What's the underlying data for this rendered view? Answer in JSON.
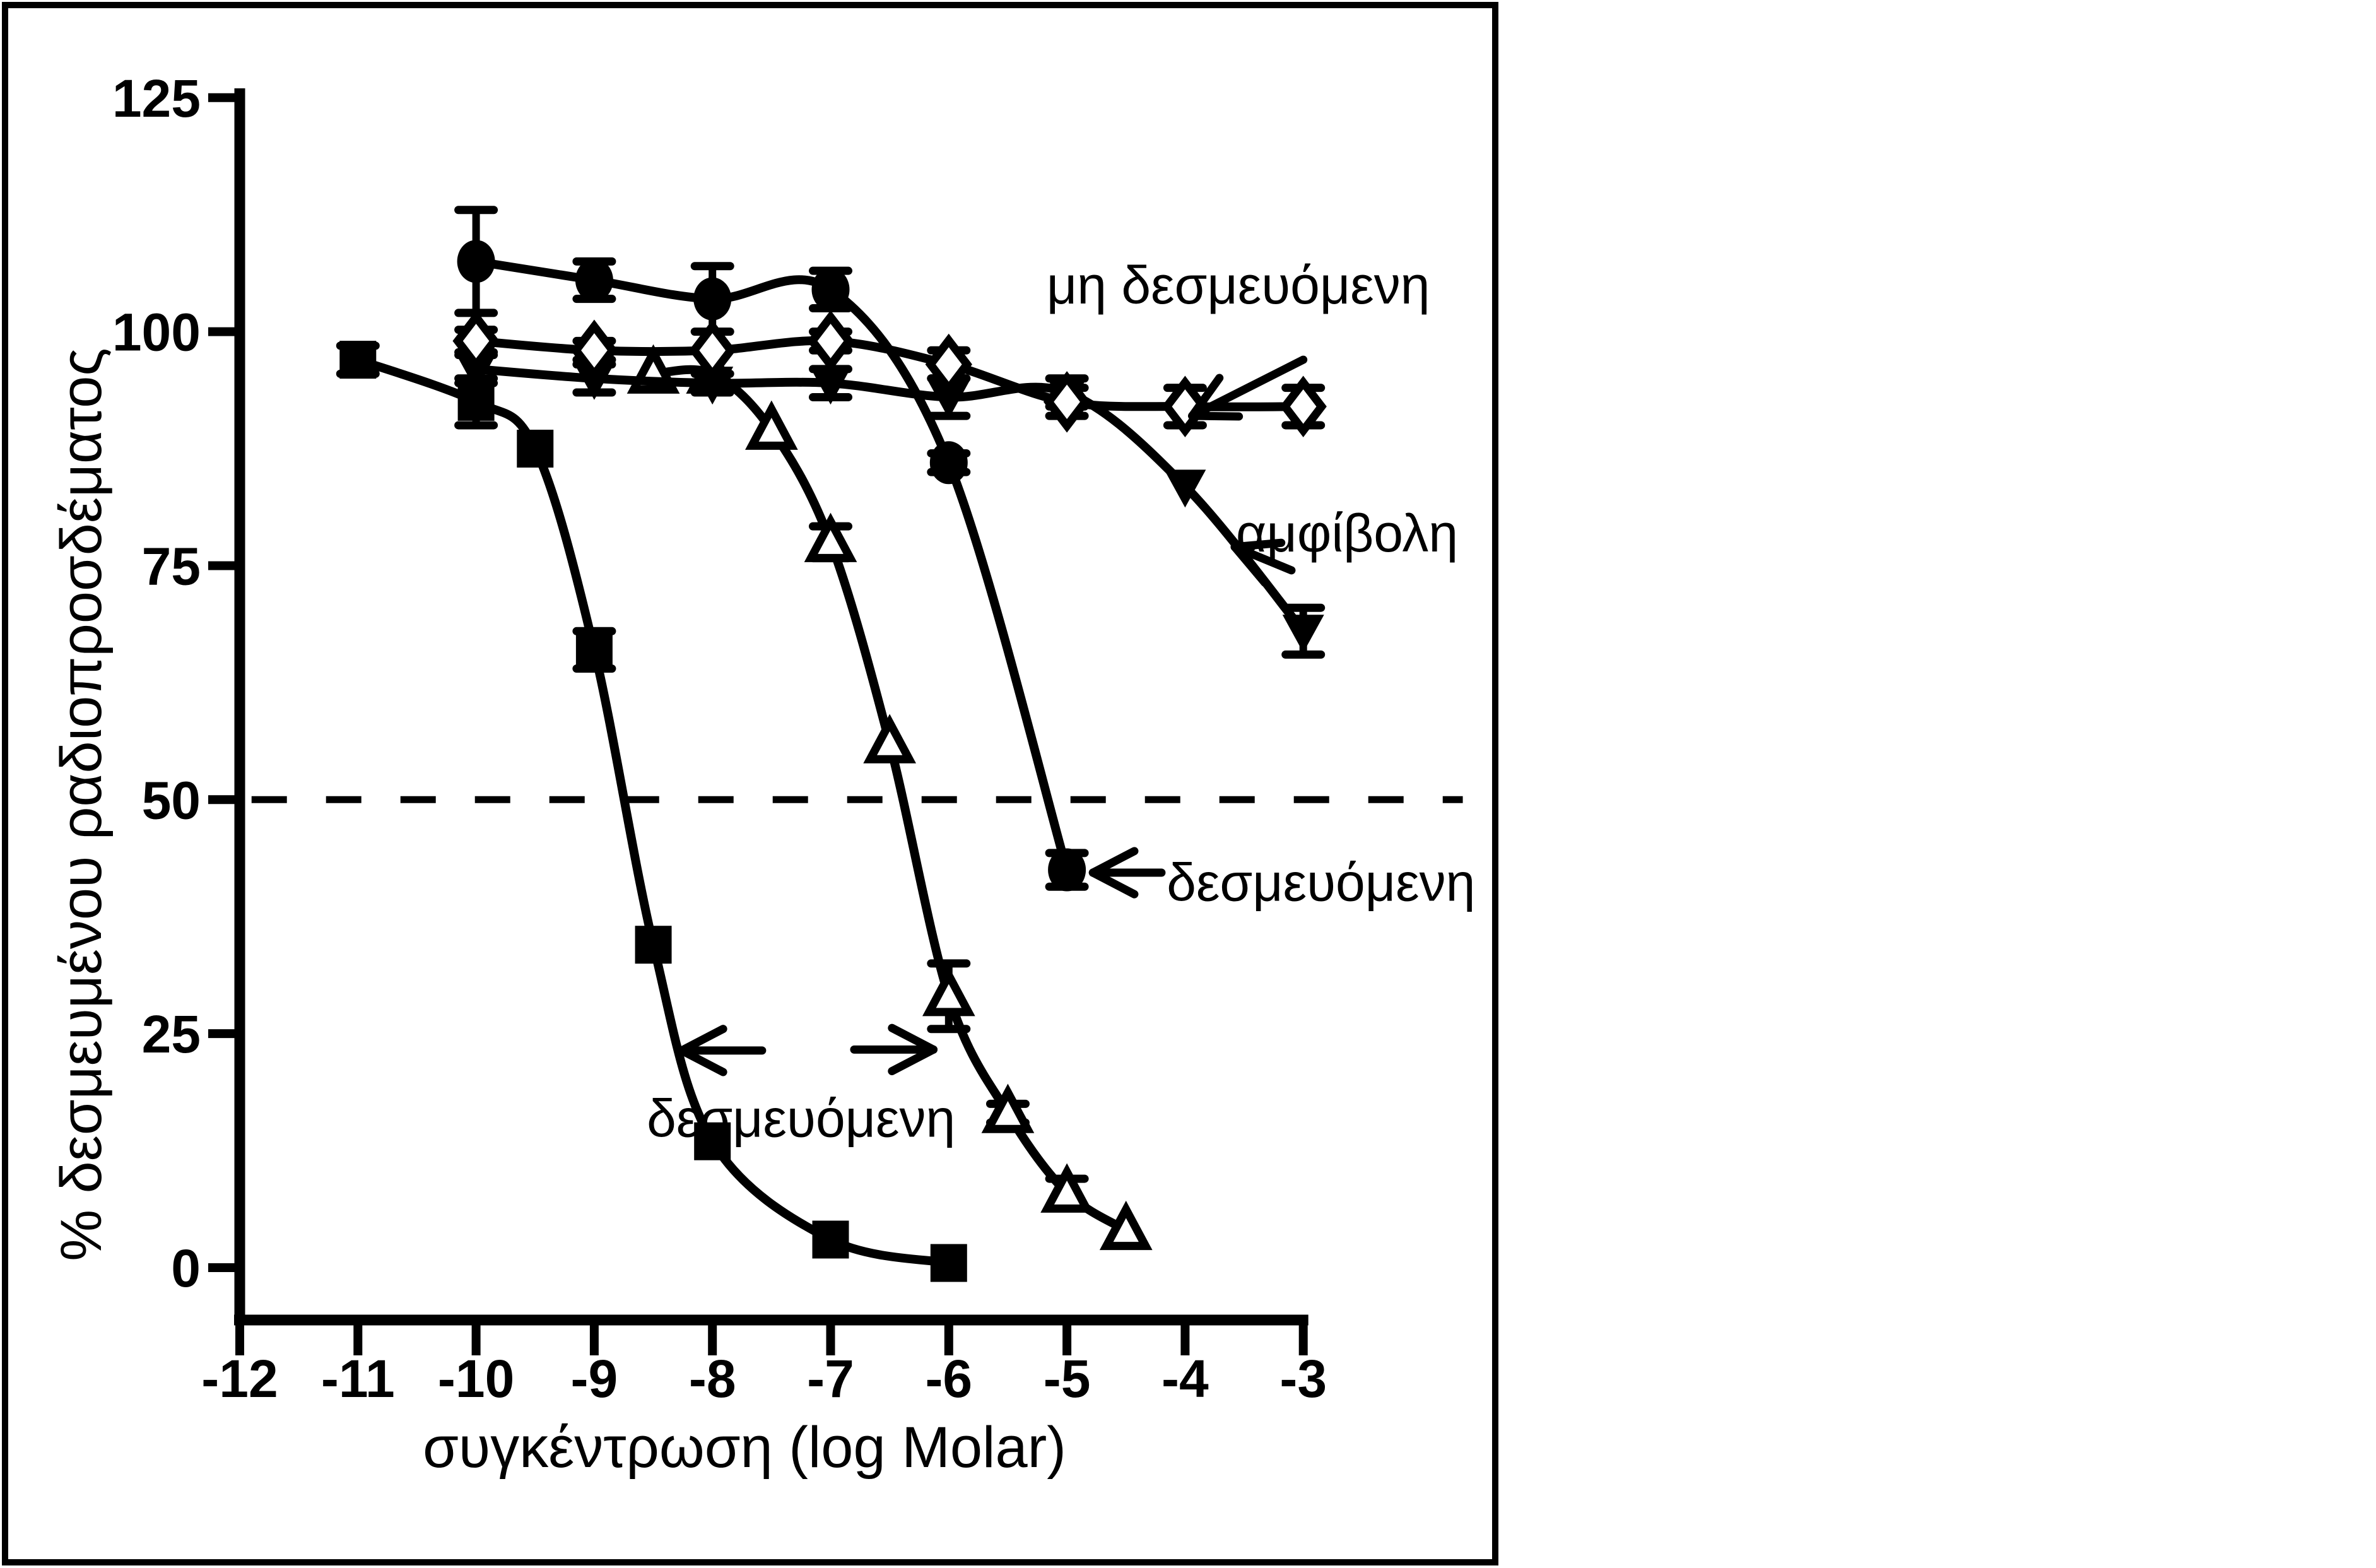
{
  "figure": {
    "background": "#ffffff",
    "ink_color": "#000000",
    "border_color": "#000000"
  },
  "chart_data": {
    "type": "line",
    "title": "",
    "xlabel": "συγκέντρωση (log Molar)",
    "ylabel": "% δεσμευμένου ραδιοπροσδέματος",
    "x_ticks": [
      -12,
      -11,
      -10,
      -9,
      -8,
      -7,
      -6,
      -5,
      -4,
      -3
    ],
    "y_ticks": [
      0,
      25,
      50,
      75,
      100,
      125
    ],
    "xlim": [
      -12,
      -3
    ],
    "ylim": [
      0,
      125
    ],
    "grid": false,
    "legend_position": "none",
    "reference_line": {
      "y": 50,
      "style": "dashed",
      "x_start": -11.9,
      "x_end": -1.65
    },
    "series": [
      {
        "id": "bound-squares",
        "name": "δεσμευόμενη",
        "marker": "filled-square",
        "x": [
          -11,
          -10,
          -9.5,
          -9,
          -8.5,
          -8,
          -7,
          -6
        ],
        "y": [
          97,
          92.5,
          87.5,
          66,
          34.5,
          13.5,
          3,
          0.5
        ],
        "err": [
          1.5,
          2.5,
          0,
          2,
          0,
          0,
          0,
          0
        ]
      },
      {
        "id": "bound-triangles",
        "name": "δεσμευόμενη",
        "marker": "open-triangle-up",
        "x": [
          -8.5,
          -8,
          -7.5,
          -7,
          -6.5,
          -6,
          -5.5,
          -5,
          -4.5
        ],
        "y": [
          95.5,
          95.5,
          89.5,
          77.5,
          56,
          29,
          16.5,
          8,
          4
        ],
        "err": [
          0,
          0,
          0,
          1.7,
          0,
          3.5,
          1,
          1.5,
          0
        ]
      },
      {
        "id": "bound-circles",
        "name": "δεσμευόμενη",
        "marker": "filled-circle",
        "x": [
          -10,
          -9,
          -8,
          -7,
          -6,
          -5
        ],
        "y": [
          107.5,
          105.5,
          103.5,
          104.5,
          86,
          42.5
        ],
        "err": [
          5.5,
          2,
          3.5,
          2,
          1,
          1.8
        ]
      },
      {
        "id": "ambiguous",
        "name": "αμφίβολη",
        "marker": "filled-triangle-down",
        "x": [
          -10,
          -9,
          -8,
          -7,
          -6,
          -5,
          -4,
          -3
        ],
        "y": [
          96,
          95,
          94.5,
          94.5,
          93,
          93.5,
          83.5,
          68
        ],
        "err": [
          1.5,
          1.5,
          1,
          1.5,
          2,
          1.5,
          0,
          2.5
        ]
      },
      {
        "id": "non-binding",
        "name": "μη δεσμευόμενη",
        "marker": "open-diamond",
        "x": [
          -10,
          -9,
          -8,
          -7,
          -6,
          -5,
          -4,
          -3
        ],
        "y": [
          99,
          98,
          98,
          99,
          96.5,
          92.5,
          92,
          92
        ],
        "err": [
          1.2,
          1,
          0,
          1,
          1.5,
          1.5,
          2,
          2
        ]
      }
    ],
    "annotations": [
      {
        "id": "non-binding-label",
        "text": "μη δεσμευόμενη",
        "x": -3.55,
        "y": 103,
        "arrows": [
          {
            "from_x": -3.0,
            "from_y": 97.0,
            "to_x": -3.94,
            "to_y": 91.0
          }
        ]
      },
      {
        "id": "ambiguous-label",
        "text": "αμφίβολη",
        "x": -2.63,
        "y": 76.5,
        "arrows": [
          {
            "from_x": -3.1,
            "from_y": 74.5,
            "to_x": -3.58,
            "to_y": 77.0
          }
        ]
      },
      {
        "id": "bound-circles-label",
        "text": "δεσμευόμενη",
        "x": -2.85,
        "y": 39.2,
        "arrows": [
          {
            "from_x": -4.2,
            "from_y": 42.2,
            "to_x": -4.78,
            "to_y": 42.2
          }
        ]
      },
      {
        "id": "bound-low-label",
        "text": "δεσμευόμενη",
        "x": -7.25,
        "y": 14.0,
        "arrows": [
          {
            "from_x": -7.58,
            "from_y": 23.2,
            "to_x": -8.26,
            "to_y": 23.2
          },
          {
            "from_x": -6.8,
            "from_y": 23.3,
            "to_x": -6.13,
            "to_y": 23.3
          }
        ]
      }
    ]
  }
}
